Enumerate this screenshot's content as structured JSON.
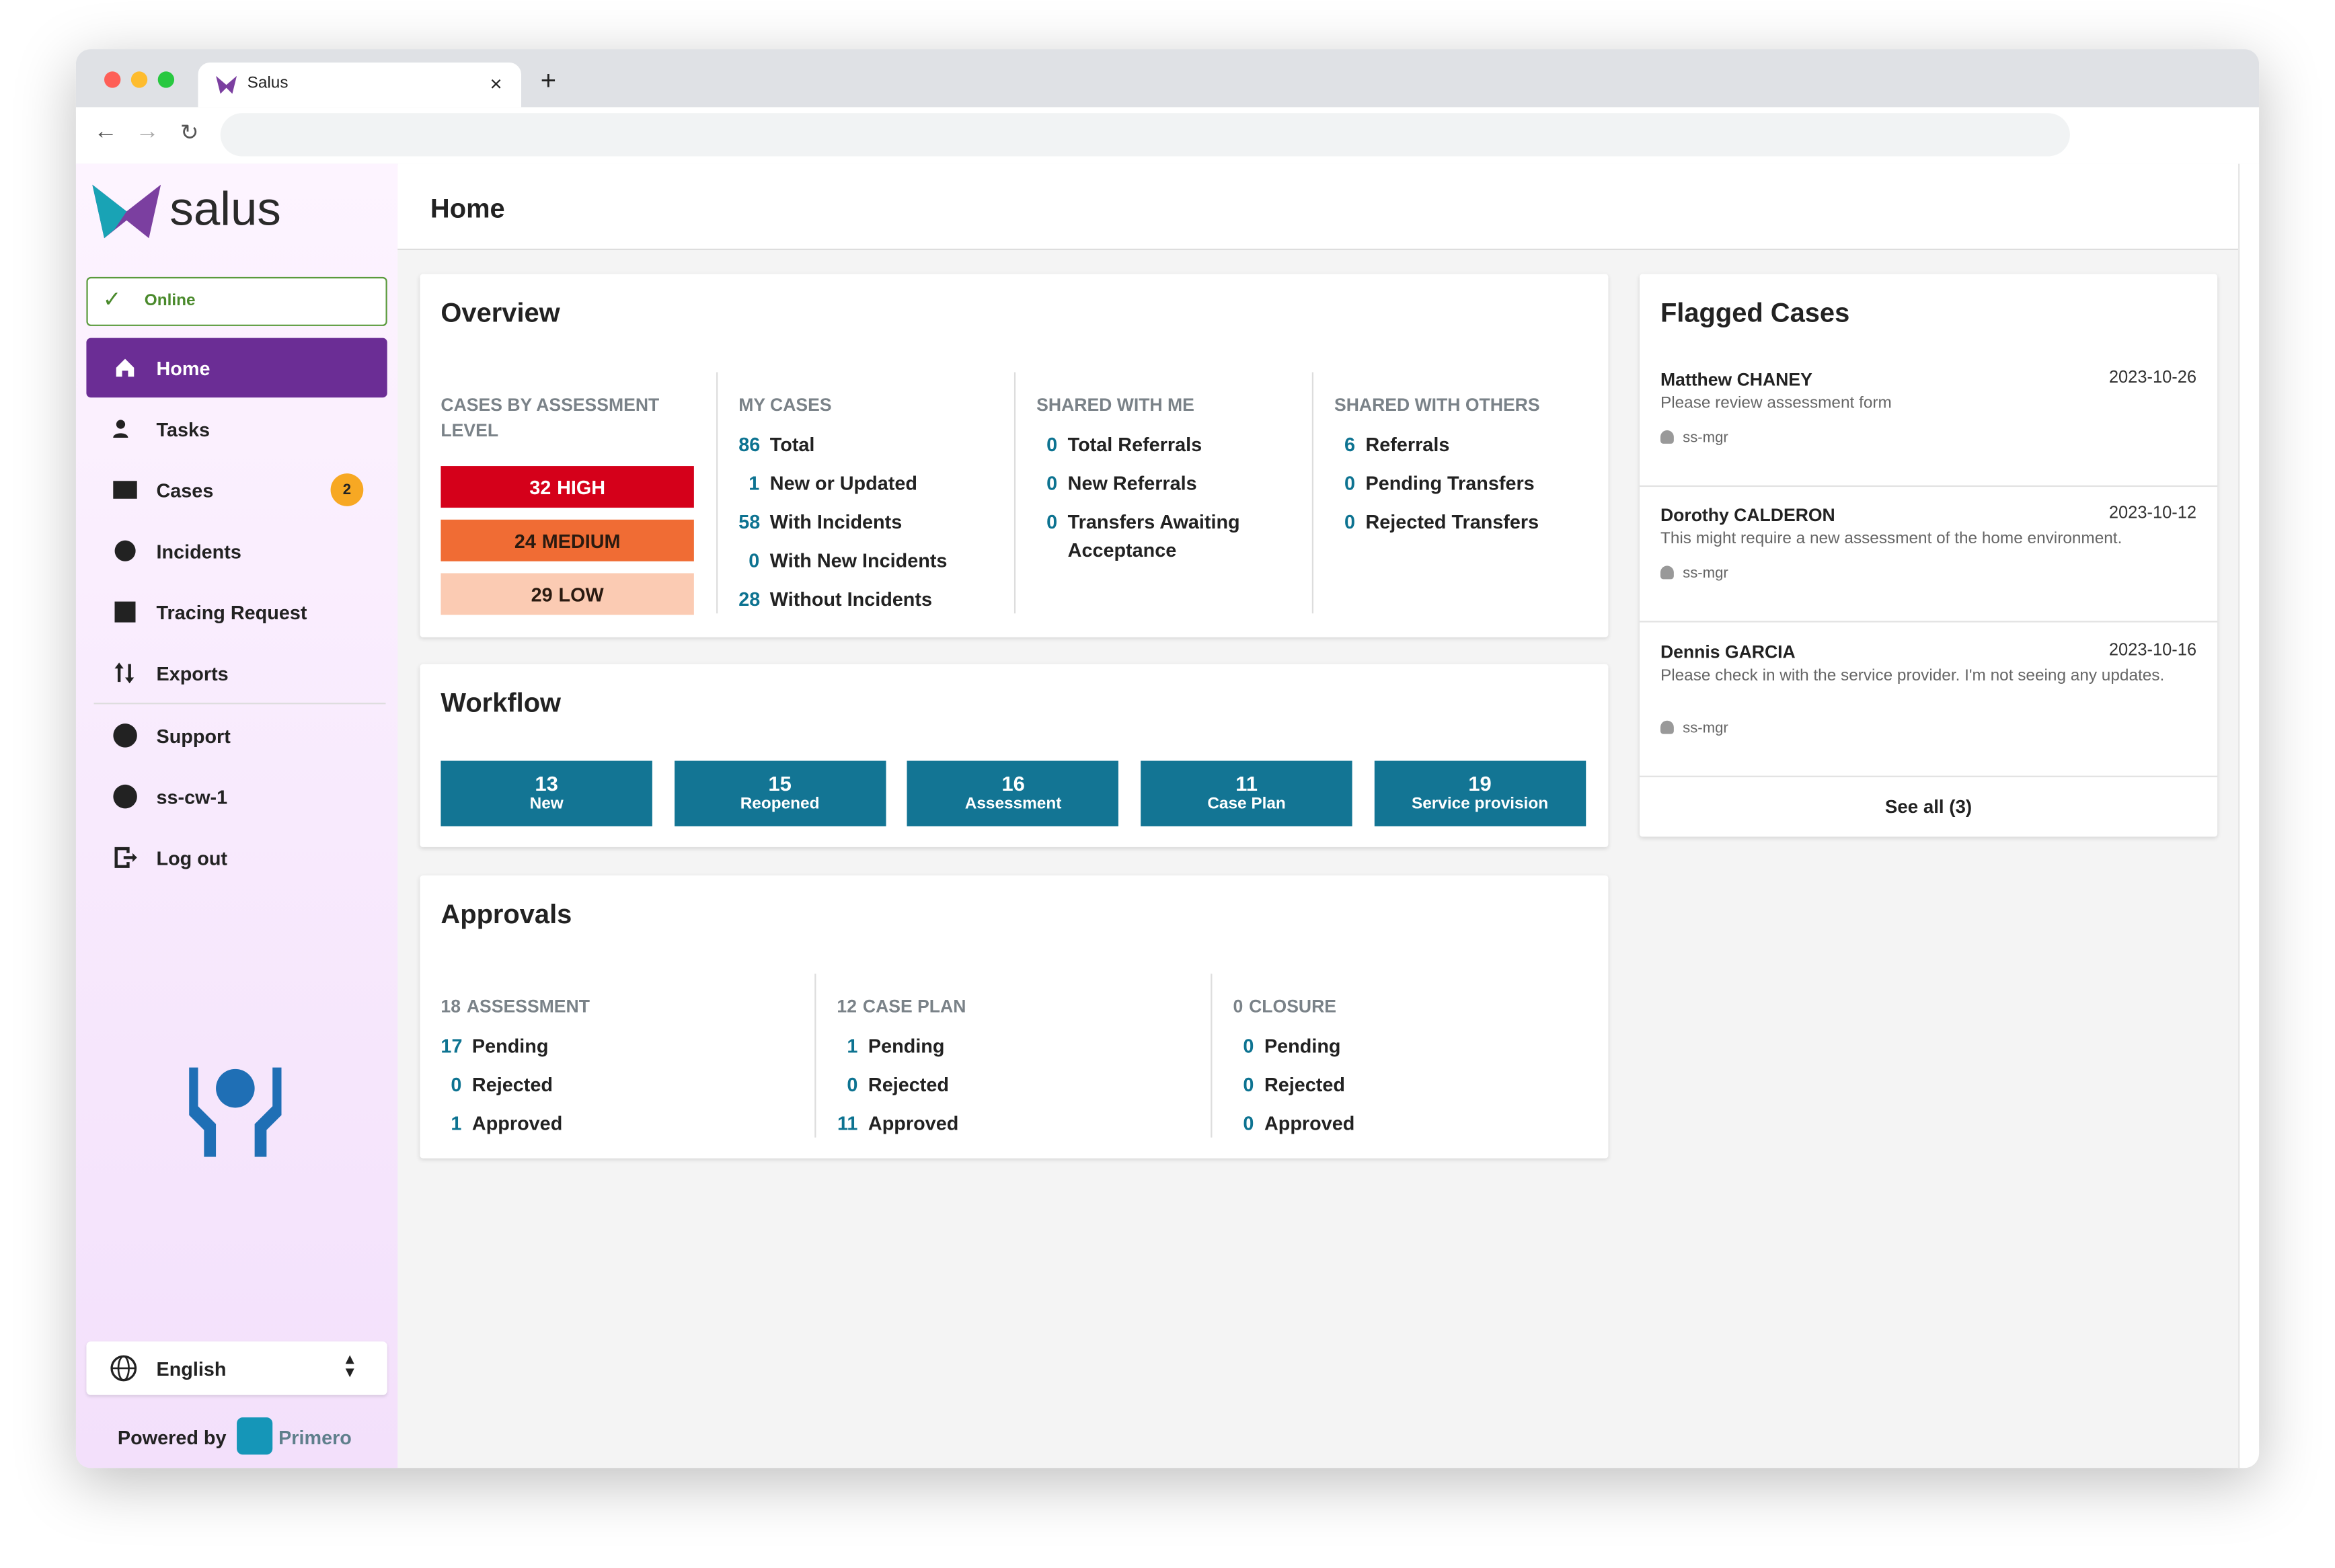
{
  "browser": {
    "tab_title": "Salus"
  },
  "sidebar": {
    "logo": "salus",
    "status": "Online",
    "nav": [
      {
        "label": "Home"
      },
      {
        "label": "Tasks"
      },
      {
        "label": "Cases",
        "badge": 2
      },
      {
        "label": "Incidents"
      },
      {
        "label": "Tracing Request"
      },
      {
        "label": "Exports"
      },
      {
        "label": "Support"
      },
      {
        "label": "ss-cw-1"
      },
      {
        "label": "Log out"
      }
    ],
    "language": "English",
    "powered_by": "Powered by",
    "brand": "Primero"
  },
  "header": {
    "title": "Home"
  },
  "overview": {
    "title": "Overview",
    "assessment": {
      "heading": "CASES BY ASSESSMENT LEVEL",
      "levels": [
        {
          "count": 32,
          "label": "HIGH"
        },
        {
          "count": 24,
          "label": "MEDIUM"
        },
        {
          "count": 29,
          "label": "LOW"
        }
      ]
    },
    "columns": [
      {
        "heading": "MY CASES",
        "items": [
          {
            "count": 86,
            "label": "Total"
          },
          {
            "count": 1,
            "label": "New or Updated"
          },
          {
            "count": 58,
            "label": "With Incidents"
          },
          {
            "count": 0,
            "label": "With New Incidents"
          },
          {
            "count": 28,
            "label": "Without Incidents"
          }
        ]
      },
      {
        "heading": "SHARED WITH ME",
        "items": [
          {
            "count": 0,
            "label": "Total Referrals"
          },
          {
            "count": 0,
            "label": "New Referrals"
          },
          {
            "count": 0,
            "label": "Transfers Awaiting Acceptance"
          }
        ]
      },
      {
        "heading": "SHARED WITH OTHERS",
        "items": [
          {
            "count": 6,
            "label": "Referrals"
          },
          {
            "count": 0,
            "label": "Pending Transfers"
          },
          {
            "count": 0,
            "label": "Rejected Transfers"
          }
        ]
      }
    ]
  },
  "workflow": {
    "title": "Workflow",
    "tiles": [
      {
        "count": 13,
        "label": "New"
      },
      {
        "count": 15,
        "label": "Reopened"
      },
      {
        "count": 16,
        "label": "Assessment"
      },
      {
        "count": 11,
        "label": "Case Plan"
      },
      {
        "count": 19,
        "label": "Service provision"
      }
    ]
  },
  "approvals": {
    "title": "Approvals",
    "columns": [
      {
        "count": 18,
        "label": "ASSESSMENT",
        "items": [
          {
            "count": 17,
            "label": "Pending"
          },
          {
            "count": 0,
            "label": "Rejected"
          },
          {
            "count": 1,
            "label": "Approved"
          }
        ]
      },
      {
        "count": 12,
        "label": "CASE PLAN",
        "items": [
          {
            "count": 1,
            "label": "Pending"
          },
          {
            "count": 0,
            "label": "Rejected"
          },
          {
            "count": 11,
            "label": "Approved"
          }
        ]
      },
      {
        "count": 0,
        "label": "CLOSURE",
        "items": [
          {
            "count": 0,
            "label": "Pending"
          },
          {
            "count": 0,
            "label": "Rejected"
          },
          {
            "count": 0,
            "label": "Approved"
          }
        ]
      }
    ]
  },
  "flagged": {
    "title": "Flagged Cases",
    "items": [
      {
        "name": "Matthew CHANEY",
        "date": "2023-10-26",
        "note": "Please review assessment form",
        "user": "ss-mgr"
      },
      {
        "name": "Dorothy CALDERON",
        "date": "2023-10-12",
        "note": "This might require a new assessment of the home environment.",
        "user": "ss-mgr"
      },
      {
        "name": "Dennis GARCIA",
        "date": "2023-10-16",
        "note": "Please check in with the service provider. I'm not seeing any updates.",
        "user": "ss-mgr"
      }
    ],
    "see_all": "See all (3)"
  }
}
